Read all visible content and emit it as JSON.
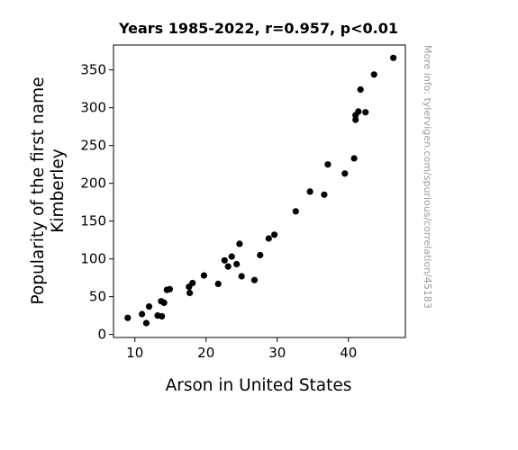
{
  "chart_data": {
    "type": "scatter",
    "title": "Years 1985-2022, r=0.957, p<0.01",
    "xlabel": "Arson in United States",
    "ylabel_lines": [
      "Popularity of the first name",
      "Kimberley"
    ],
    "side_note": "More info: tylervigen.com/spurious/correlation/45183",
    "xlim": [
      7,
      48
    ],
    "ylim": [
      -4,
      383
    ],
    "xticks": [
      10,
      20,
      30,
      40
    ],
    "yticks": [
      0,
      50,
      100,
      150,
      200,
      250,
      300,
      350
    ],
    "grid": false,
    "marker_color": "#000000",
    "points": [
      {
        "x": 9.0,
        "y": 22
      },
      {
        "x": 11.0,
        "y": 27
      },
      {
        "x": 11.6,
        "y": 15
      },
      {
        "x": 12.0,
        "y": 37
      },
      {
        "x": 13.2,
        "y": 25
      },
      {
        "x": 13.7,
        "y": 44
      },
      {
        "x": 13.8,
        "y": 24
      },
      {
        "x": 14.1,
        "y": 42
      },
      {
        "x": 14.5,
        "y": 59
      },
      {
        "x": 14.9,
        "y": 60
      },
      {
        "x": 17.6,
        "y": 63
      },
      {
        "x": 17.7,
        "y": 55
      },
      {
        "x": 18.1,
        "y": 68
      },
      {
        "x": 19.7,
        "y": 78
      },
      {
        "x": 21.7,
        "y": 67
      },
      {
        "x": 22.6,
        "y": 98
      },
      {
        "x": 23.1,
        "y": 90
      },
      {
        "x": 23.6,
        "y": 103
      },
      {
        "x": 24.3,
        "y": 93
      },
      {
        "x": 24.7,
        "y": 120
      },
      {
        "x": 25.0,
        "y": 77
      },
      {
        "x": 26.8,
        "y": 72
      },
      {
        "x": 27.6,
        "y": 105
      },
      {
        "x": 28.8,
        "y": 127
      },
      {
        "x": 29.6,
        "y": 132
      },
      {
        "x": 32.6,
        "y": 163
      },
      {
        "x": 34.6,
        "y": 189
      },
      {
        "x": 36.6,
        "y": 185
      },
      {
        "x": 37.1,
        "y": 225
      },
      {
        "x": 39.5,
        "y": 213
      },
      {
        "x": 40.8,
        "y": 233
      },
      {
        "x": 41.0,
        "y": 284
      },
      {
        "x": 41.0,
        "y": 290
      },
      {
        "x": 41.4,
        "y": 295
      },
      {
        "x": 41.7,
        "y": 324
      },
      {
        "x": 42.4,
        "y": 294
      },
      {
        "x": 43.6,
        "y": 344
      },
      {
        "x": 46.3,
        "y": 366
      }
    ]
  }
}
